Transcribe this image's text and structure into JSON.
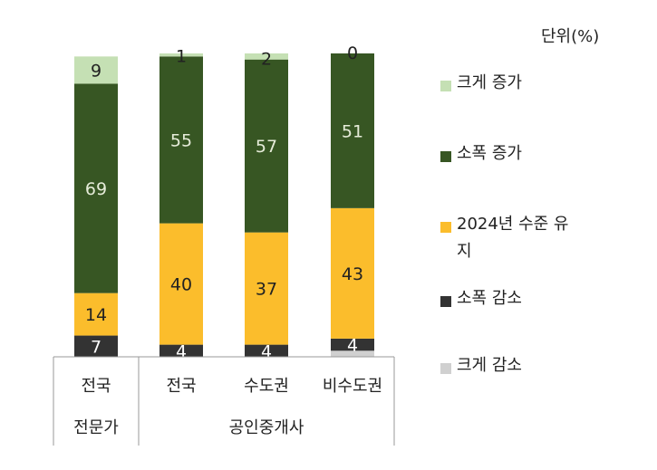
{
  "chart_data": {
    "type": "bar",
    "stacked": true,
    "unit_label": "단위(%)",
    "categories": [
      "전국",
      "전국",
      "수도권",
      "비수도권"
    ],
    "groups": [
      {
        "label": "전문가",
        "categories": [
          "전국"
        ]
      },
      {
        "label": "공인중개사",
        "categories": [
          "전국",
          "수도권",
          "비수도권"
        ]
      }
    ],
    "series": [
      {
        "name": "크게 감소",
        "color": "#D0D0D0",
        "values": [
          0,
          0,
          0,
          2
        ],
        "labels": [
          "",
          "",
          "",
          ""
        ]
      },
      {
        "name": "소폭 감소",
        "color": "#333333",
        "values": [
          7,
          4,
          4,
          4
        ],
        "labels": [
          "7",
          "4",
          "4",
          "4"
        ]
      },
      {
        "name": "2024년 수준 유지",
        "color": "#FBBD2C",
        "values": [
          14,
          40,
          37,
          43
        ],
        "labels": [
          "14",
          "40",
          "37",
          "43"
        ]
      },
      {
        "name": "소폭 증가",
        "color": "#375623",
        "values": [
          69,
          55,
          57,
          51
        ],
        "labels": [
          "69",
          "55",
          "57",
          "51"
        ]
      },
      {
        "name": "크게 증가",
        "color": "#C5E0B4",
        "values": [
          9,
          1,
          2,
          0
        ],
        "labels": [
          "9",
          "1",
          "2",
          "0"
        ]
      }
    ],
    "legend": [
      "크게 증가",
      "소폭 증가",
      "2024년 수준 유지",
      "소폭 감소",
      "크게 감소"
    ],
    "legend_position": "right",
    "ylim": [
      0,
      100
    ],
    "grid": false
  }
}
